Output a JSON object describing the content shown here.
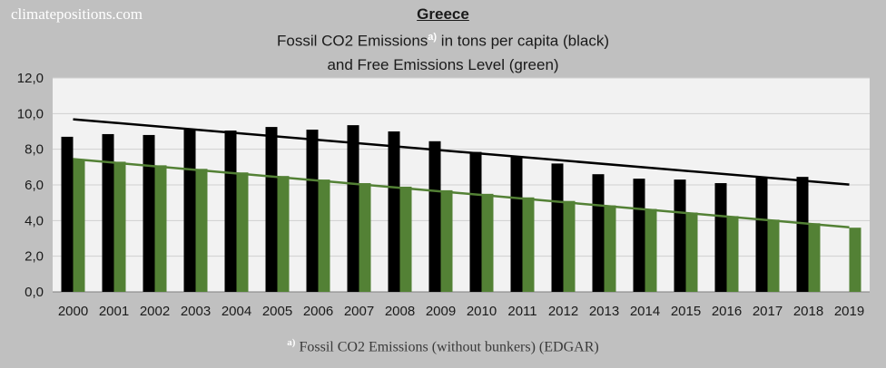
{
  "watermark": "climatepositions.com",
  "chart_data": {
    "type": "bar",
    "title": "Greece",
    "subtitle_line1": "Fossil CO2 Emissions",
    "subtitle_sup": "a)",
    "subtitle_line1_rest": " in tons per capita (black)",
    "subtitle_line2": "and Free Emissions Level (green)",
    "footnote_sup": "a)",
    "footnote": " Fossil CO2 Emissions (without bunkers) (EDGAR)",
    "categories": [
      "2000",
      "2001",
      "2002",
      "2003",
      "2004",
      "2005",
      "2006",
      "2007",
      "2008",
      "2009",
      "2010",
      "2011",
      "2012",
      "2013",
      "2014",
      "2015",
      "2016",
      "2017",
      "2018",
      "2019"
    ],
    "series": [
      {
        "color": "#000000",
        "values": [
          8.7,
          8.85,
          8.8,
          9.1,
          9.05,
          9.25,
          9.1,
          9.35,
          9.0,
          8.45,
          7.85,
          7.6,
          7.2,
          6.6,
          6.35,
          6.3,
          6.1,
          6.45,
          6.45,
          null
        ]
      },
      {
        "color": "#538135",
        "values": [
          7.45,
          7.3,
          7.1,
          6.9,
          6.7,
          6.5,
          6.3,
          6.1,
          5.9,
          5.7,
          5.5,
          5.3,
          5.1,
          4.85,
          4.65,
          4.45,
          4.25,
          4.05,
          3.85,
          3.6
        ]
      }
    ],
    "trendlines": [
      {
        "color": "#000000",
        "start": 9.68,
        "end": 6.02
      },
      {
        "color": "#538135",
        "start": 7.45,
        "end": 3.62
      }
    ],
    "yticks": [
      "0,0",
      "2,0",
      "4,0",
      "6,0",
      "8,0",
      "10,0",
      "12,0"
    ],
    "ylim": [
      0,
      12
    ],
    "grid": true
  }
}
